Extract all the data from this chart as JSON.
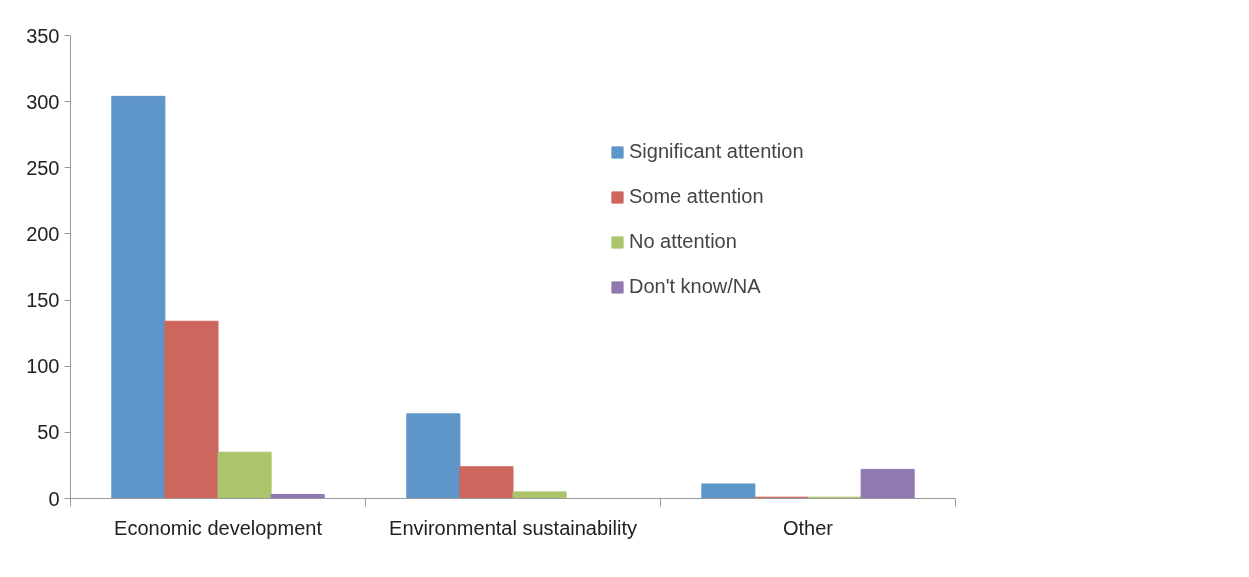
{
  "chart_data": {
    "type": "bar",
    "categories": [
      "Economic development",
      "Environmental sustainability",
      "Other"
    ],
    "series": [
      {
        "name": "Significant attention",
        "color": "#5f96c9",
        "values": [
          304,
          64,
          11
        ]
      },
      {
        "name": "Some attention",
        "color": "#cd665d",
        "values": [
          134,
          24,
          1
        ]
      },
      {
        "name": "No attention",
        "color": "#acc56c",
        "values": [
          35,
          5,
          1
        ]
      },
      {
        "name": "Don't know/NA",
        "color": "#9079b1",
        "values": [
          3,
          0,
          22
        ]
      }
    ],
    "ylim": [
      0,
      350
    ],
    "yticks": [
      0,
      50,
      100,
      150,
      200,
      250,
      300,
      350
    ],
    "grid": false,
    "legend": "top right"
  }
}
